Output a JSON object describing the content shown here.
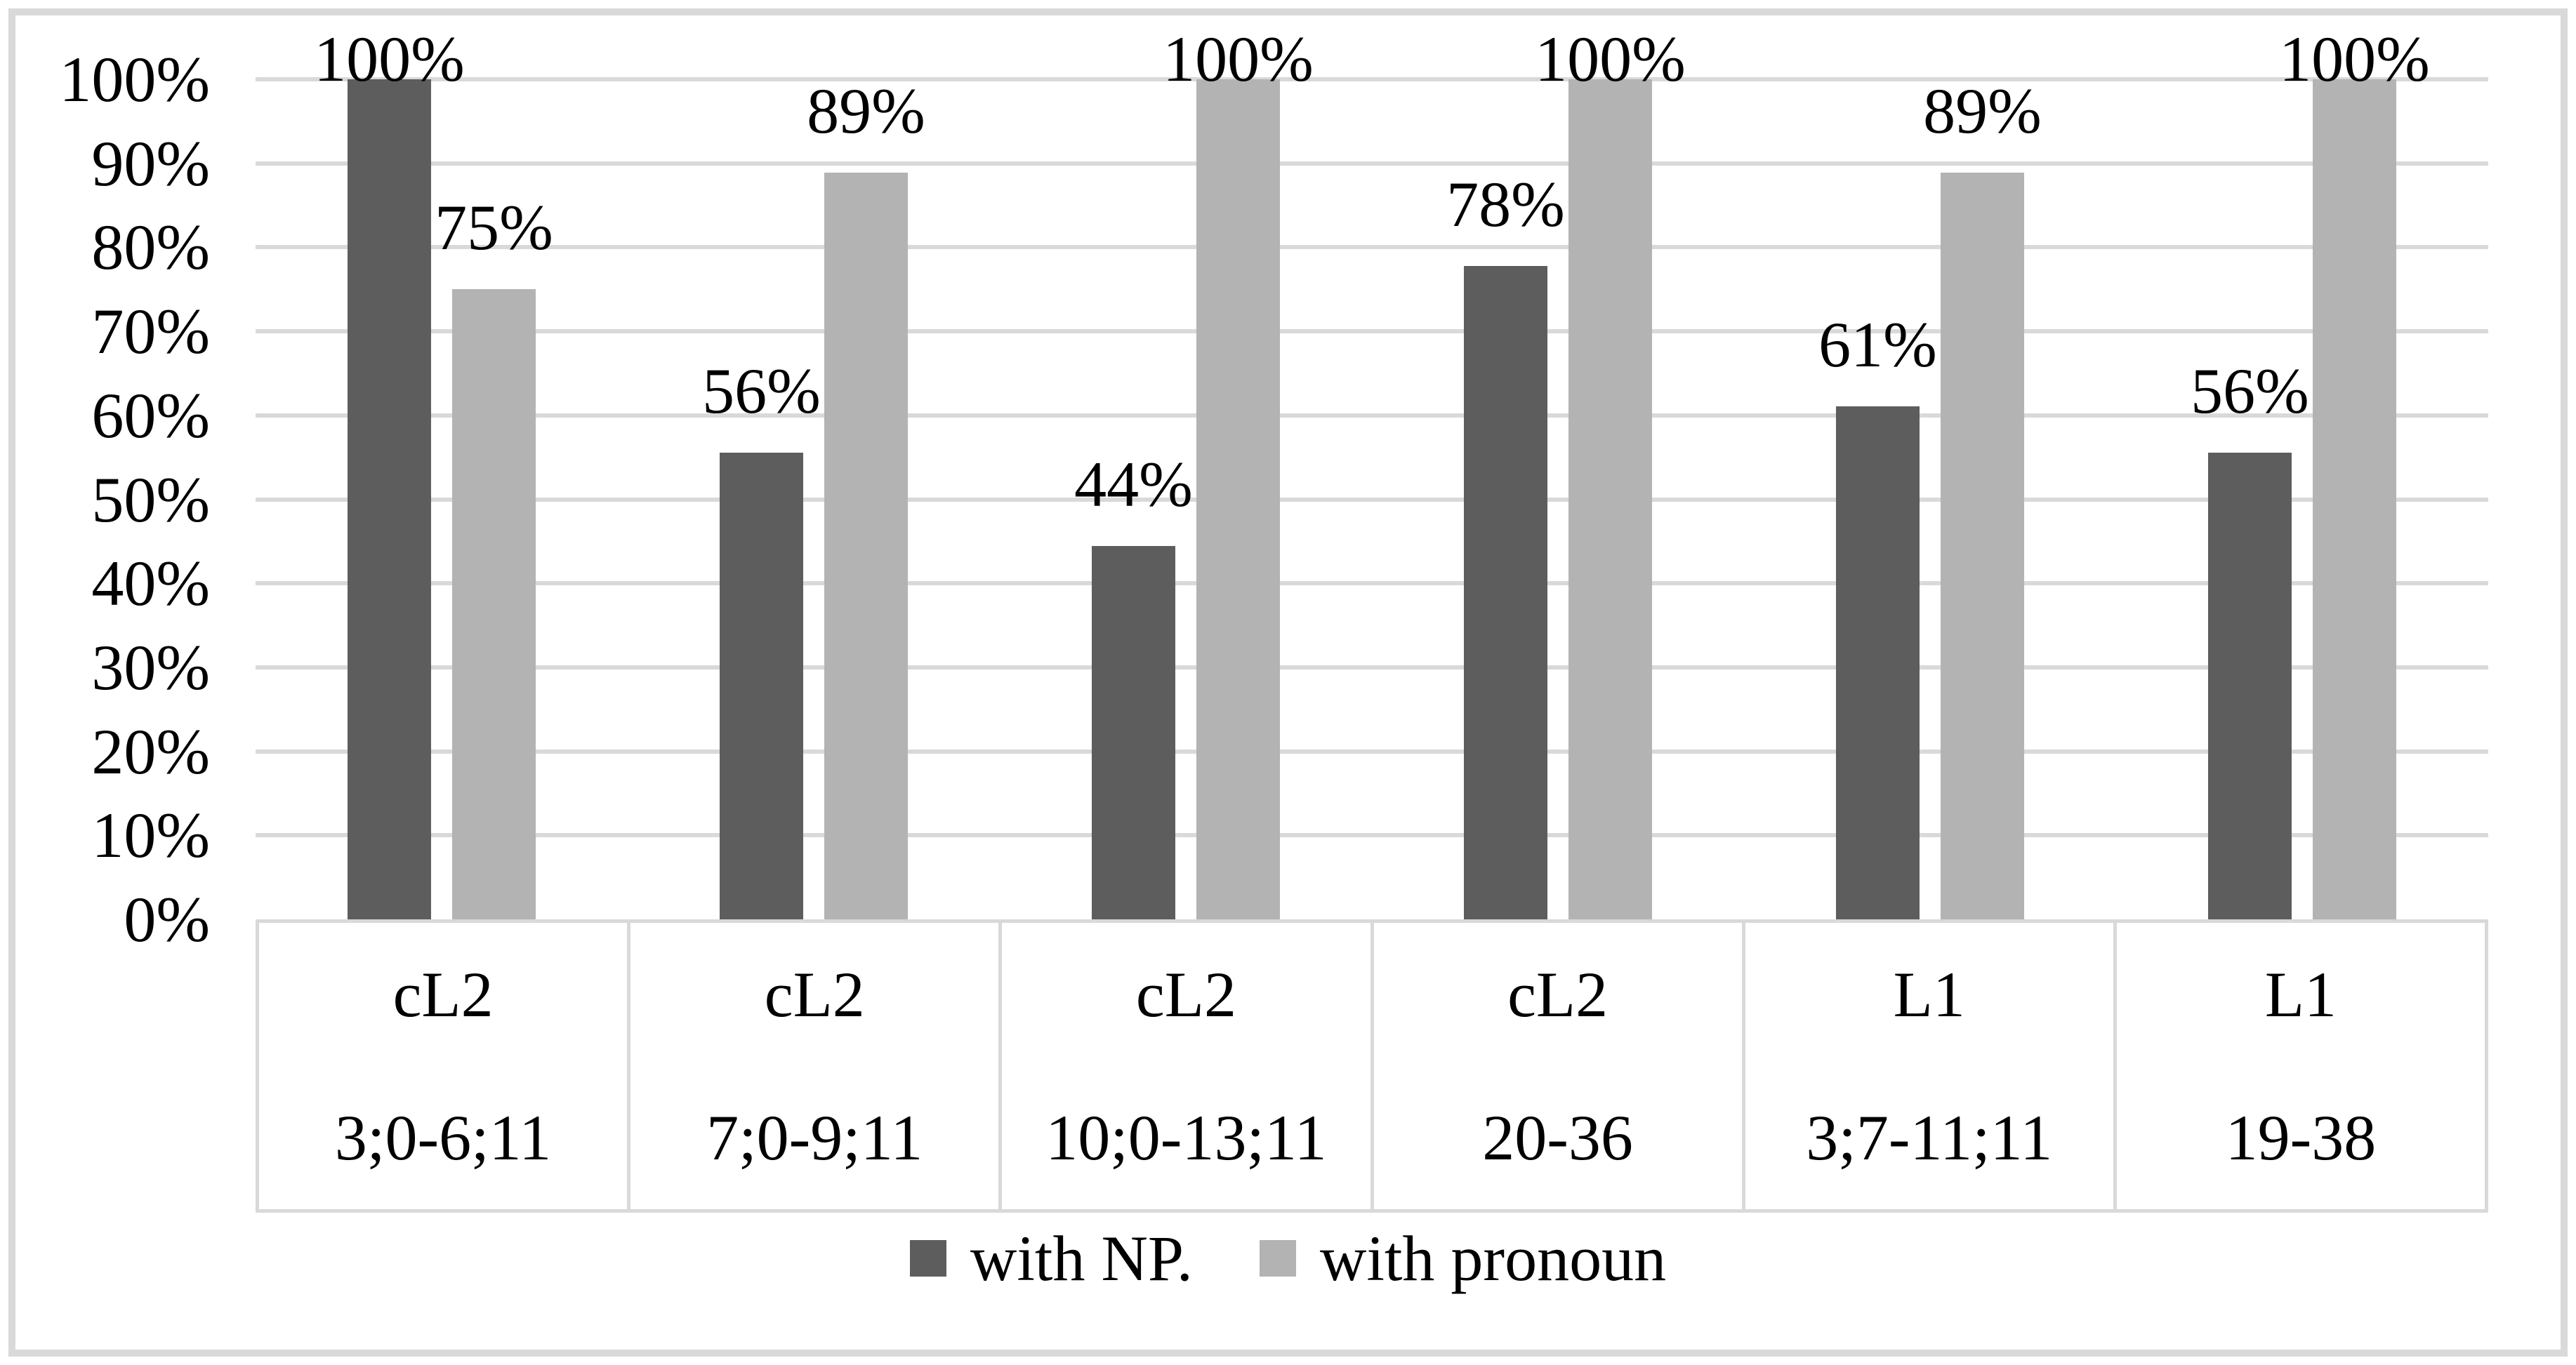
{
  "chart_data": {
    "type": "bar",
    "title": "",
    "xlabel": "",
    "ylabel": "",
    "ylim": [
      0,
      100
    ],
    "grid": true,
    "legend_position": "bottom",
    "yticks_top_to_bottom": [
      "100%",
      "90%",
      "80%",
      "70%",
      "60%",
      "50%",
      "40%",
      "30%",
      "20%",
      "10%",
      "0%"
    ],
    "categories": [
      {
        "line1": "cL2",
        "line2": "3;0-6;11"
      },
      {
        "line1": "cL2",
        "line2": "7;0-9;11"
      },
      {
        "line1": "cL2",
        "line2": "10;0-13;11"
      },
      {
        "line1": "cL2",
        "line2": "20-36"
      },
      {
        "line1": "L1",
        "line2": "3;7-11;11"
      },
      {
        "line1": "L1",
        "line2": "19-38"
      }
    ],
    "series": [
      {
        "name": "with NP.",
        "color": "#5d5d5d",
        "values": [
          100,
          56,
          44,
          78,
          61,
          56
        ],
        "labels": [
          "100%",
          "56%",
          "44%",
          "78%",
          "61%",
          "56%"
        ],
        "heights_pct": [
          100,
          55.56,
          44.44,
          77.78,
          61.11,
          55.56
        ]
      },
      {
        "name": "with pronoun",
        "color": "#b3b3b3",
        "values": [
          75,
          89,
          100,
          100,
          89,
          100
        ],
        "labels": [
          "75%",
          "89%",
          "100%",
          "100%",
          "89%",
          "100%"
        ],
        "heights_pct": [
          75,
          88.89,
          100,
          100,
          88.89,
          100
        ]
      }
    ]
  },
  "legend": {
    "items": [
      {
        "label": "with NP.",
        "color": "#5d5d5d"
      },
      {
        "label": "with pronoun",
        "color": "#b3b3b3"
      }
    ]
  },
  "colors": {
    "gridline": "#d9d9d9",
    "axis_box": "#d9d9d9",
    "frame": "#d9d9d9",
    "background": "#ffffff",
    "text": "#000000"
  }
}
